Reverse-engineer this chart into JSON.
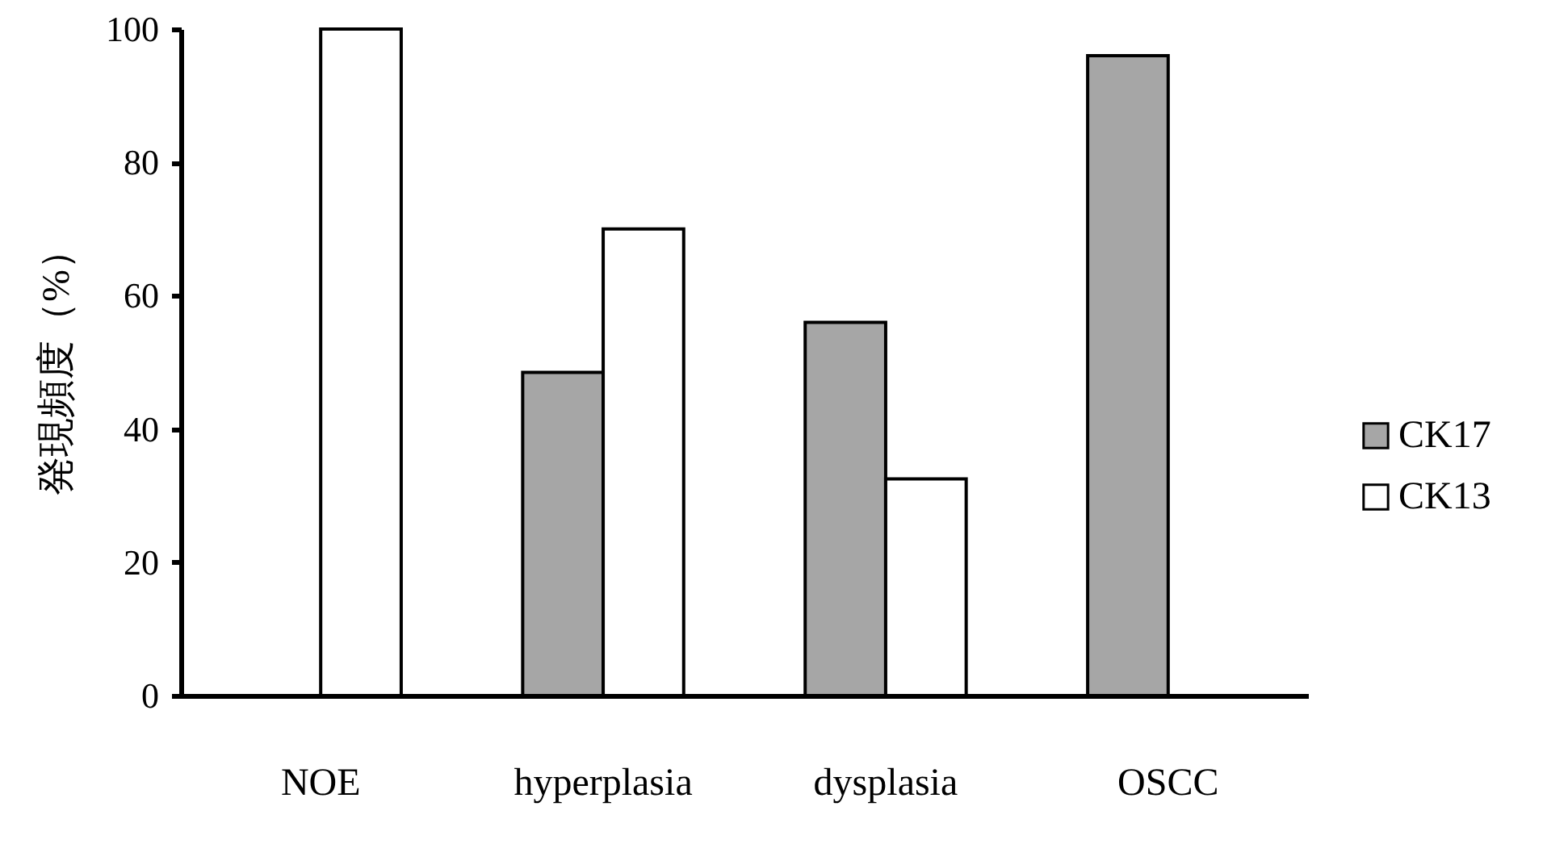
{
  "chart_data": {
    "type": "bar",
    "ylabel": "発現頻度（%）",
    "categories": [
      "NOE",
      "hyperplasia",
      "dysplasia",
      "OSCC"
    ],
    "series": [
      {
        "name": "CK17",
        "color": "#a6a6a6",
        "values": [
          null,
          48.5,
          56,
          96
        ]
      },
      {
        "name": "CK13",
        "color": "#ffffff",
        "values": [
          100,
          70,
          32.5,
          null
        ]
      }
    ],
    "ylim": [
      0,
      100
    ],
    "yticks": [
      0,
      20,
      40,
      60,
      80,
      100
    ],
    "grid": false,
    "legend": "right"
  }
}
